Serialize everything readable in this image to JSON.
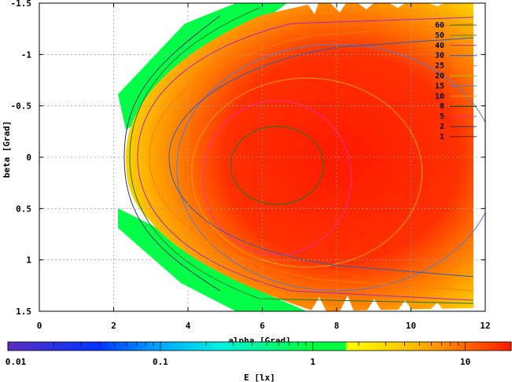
{
  "chart_data": {
    "type": "heatmap",
    "title": "",
    "xlabel": "alpha [Grad]",
    "ylabel": "beta [Grad]",
    "xlim": [
      0,
      12
    ],
    "ylim": [
      1.5,
      -1.5
    ],
    "x_ticks": [
      "0",
      "2",
      "4",
      "6",
      "8",
      "10",
      "12"
    ],
    "y_ticks": [
      "-1.5",
      "-1",
      "-0.5",
      "0",
      "0.5",
      "1",
      "1.5"
    ],
    "grid": true,
    "colorbar": {
      "label": "E [lx]",
      "scale": "log",
      "range": [
        0.01,
        20
      ],
      "ticks": [
        "0.01",
        "0.1",
        "1",
        "10"
      ],
      "colors": [
        "#5a2fc0",
        "#0033ff",
        "#00a6ff",
        "#00f0e0",
        "#00ff3c",
        "#ffff00",
        "#ffc000",
        "#ff7000",
        "#ff1a00"
      ]
    },
    "contour_levels": [
      {
        "label": "60",
        "color": "#0d7a2e"
      },
      {
        "label": "50",
        "color": "#4b8a2c"
      },
      {
        "label": "40",
        "color": "#a02cc0"
      },
      {
        "label": "30",
        "color": "#2060c0"
      },
      {
        "label": "25",
        "color": "#ff7a00"
      },
      {
        "label": "20",
        "color": "#a0c000"
      },
      {
        "label": "15",
        "color": "#5a7ad0"
      },
      {
        "label": "10",
        "color": "#ffa000"
      },
      {
        "label": "8",
        "color": "#004000"
      },
      {
        "label": "5",
        "color": "#ff2aa0"
      },
      {
        "label": "2",
        "color": "#303060"
      },
      {
        "label": "1",
        "color": "#602000"
      }
    ],
    "contours": [
      {
        "level": "5",
        "center": [
          6.4,
          0.2
        ],
        "rx": 2.0,
        "ry": 0.75
      },
      {
        "level": "10",
        "center": [
          7.2,
          0.15
        ],
        "rx": 3.1,
        "ry": 0.92
      },
      {
        "level": "15",
        "center": [
          8.0,
          0.1
        ],
        "rx": 4.3,
        "ry": 1.2
      },
      {
        "level": "60",
        "center": [
          6.4,
          0.08
        ],
        "rx": 1.25,
        "ry": 0.38
      }
    ]
  }
}
